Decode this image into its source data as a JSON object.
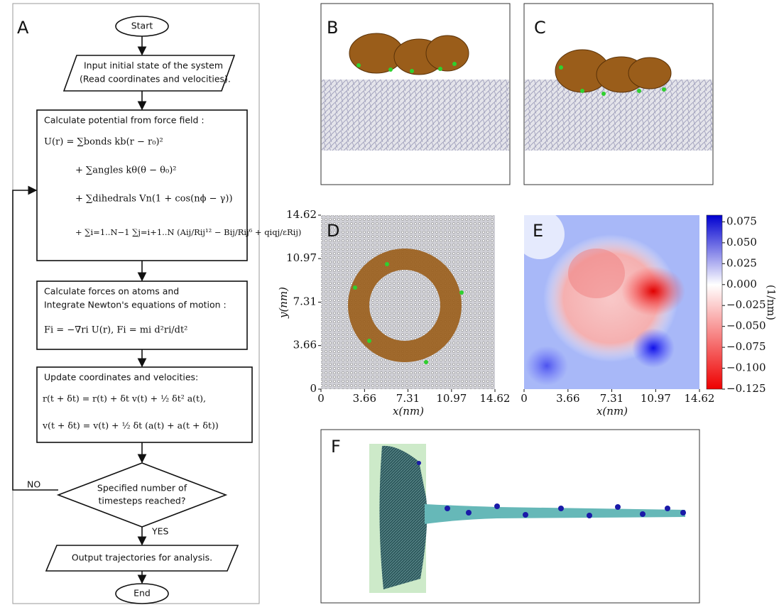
{
  "labels": [
    "A",
    "B",
    "C",
    "D",
    "E",
    "F"
  ],
  "flowchart": {
    "start": "Start",
    "input": [
      "Input initial state of the system",
      "(Read coordinates and velocities)."
    ],
    "potential": {
      "heading": "Calculate potential from force field      :",
      "equations": [
        "U(r)  =  ∑bonds kb(r − r₀)²",
        "+  ∑angles kθ(θ − θ₀)²",
        "+  ∑dihedrals Vn(1 + cos(nϕ − γ))",
        "+  ∑i=1..N−1 ∑j=i+1..N (Aij/Rij¹² − Bij/Rij⁶ + qiqj/εRij)"
      ]
    },
    "forces": {
      "heading": [
        "Calculate forces on atoms and",
        "Integrate Newton's equations of motion     :"
      ],
      "equation": "Fi = −∇ri U(r),   Fi = mi d²ri/dt²"
    },
    "update": {
      "heading": "Update coordinates and velocities:",
      "equations": [
        "r(t + δt)  =  r(t) + δt v(t) + ½ δt² a(t),",
        "v(t + δt)  =  v(t) + ½ δt (a(t) + a(t + δt))"
      ]
    },
    "decision": [
      "Specified number of",
      "timesteps reached?"
    ],
    "no": "NO",
    "yes": "YES",
    "output": "Output trajectories for analysis.",
    "end": "End"
  },
  "plot_d": {
    "xlim": [
      0,
      14.62
    ],
    "ylim": [
      0,
      14.62
    ],
    "xticks": [
      0,
      3.66,
      7.31,
      10.97,
      14.62
    ],
    "yticks": [
      0,
      3.66,
      7.31,
      10.97,
      14.62
    ],
    "xlabel": "x(nm)",
    "ylabel": "y(nm)"
  },
  "plot_e": {
    "xlim": [
      0,
      14.62
    ],
    "xticks": [
      0,
      3.66,
      7.31,
      10.97,
      14.62
    ],
    "xlabel": "x(nm)",
    "colorbar": {
      "label": "(1/nm)",
      "lim": [
        -0.125,
        0.083
      ],
      "ticks": [
        {
          "value": 0.075,
          "label": "0.075"
        },
        {
          "value": 0.05,
          "label": "0.050"
        },
        {
          "value": 0.025,
          "label": "0.025"
        },
        {
          "value": 0,
          "label": "0.000"
        },
        {
          "value": -0.025,
          "label": "−0.025"
        },
        {
          "value": -0.05,
          "label": "−0.050"
        },
        {
          "value": -0.075,
          "label": "−0.075"
        },
        {
          "value": -0.1,
          "label": "−0.100"
        },
        {
          "value": -0.125,
          "label": "−0.125"
        }
      ]
    }
  }
}
